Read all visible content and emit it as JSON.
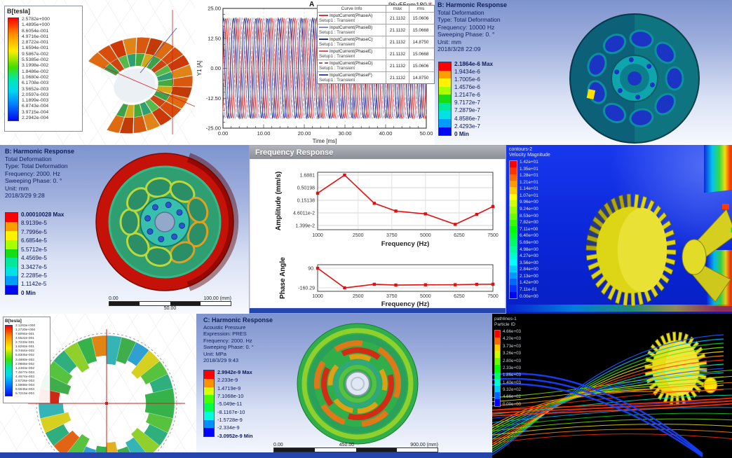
{
  "panels": {
    "maxwell_segment": {
      "legend_title": "B[tesla]",
      "legend_values": [
        "2.5782e+000",
        "1.4895e+000",
        "8.6054e-001",
        "4.9716e-001",
        "2.8722e-001",
        "1.6594e-001",
        "9.5867e-002",
        "5.5385e-002",
        "3.1998e-002",
        "1.8486e-002",
        "1.0680e-002",
        "6.1708e-003",
        "3.5652e-003",
        "2.0597e-003",
        "1.1899e-003",
        "6.8743e-004",
        "3.9715e-004",
        "2.2942e-004"
      ]
    },
    "current_plot": {
      "corner_label": "A",
      "title": "96v55nm180",
      "ylabel": "Y1 [A]",
      "xlabel": "Time [ms]",
      "y_ticks": [
        "25.00",
        "12.50",
        "0.00",
        "-12.50",
        "-25.00"
      ],
      "x_ticks": [
        "0.00",
        "10.00",
        "20.00",
        "30.00",
        "40.00",
        "50.00"
      ],
      "table_headers": [
        "Curve Info",
        "max",
        "rms"
      ],
      "series": [
        {
          "label": "InputCurrent(PhaseA)",
          "sub": "Setup1 : Transient",
          "max": "21.1132",
          "rms": "15.0606",
          "color": "#cf3a3a",
          "dash": "",
          "phase_deg": 0
        },
        {
          "label": "InputCurrent(PhaseB)",
          "sub": "Setup1 : Transient",
          "max": "21.1132",
          "rms": "15.0668",
          "color": "#8089cb",
          "dash": "",
          "phase_deg": -120
        },
        {
          "label": "InputCurrent(PhaseC)",
          "sub": "Setup1 : Transient",
          "max": "21.1132",
          "rms": "14.8750",
          "color": "#27338f",
          "dash": "",
          "phase_deg": -240
        },
        {
          "label": "InputCurrent(PhaseE)",
          "sub": "Setup1 : Transient",
          "max": "21.1132",
          "rms": "15.0668",
          "color": "#e05555",
          "dash": "",
          "phase_deg": -60
        },
        {
          "label": "InputCurrent(PhaseD)",
          "sub": "Setup1 : Transient",
          "max": "21.1132",
          "rms": "15.0606",
          "color": "#9a5a70",
          "dash": "4 3",
          "phase_deg": -180
        },
        {
          "label": "InputCurrent(PhaseF)",
          "sub": "Setup1 : Transient",
          "max": "21.1132",
          "rms": "14.8750",
          "color": "#3a49b0",
          "dash": "",
          "phase_deg": -300
        }
      ],
      "amplitude": 21.1132,
      "period_ms": 2.78
    },
    "harm10000": {
      "header_lines": [
        "B: Harmonic Response",
        "Total Deformation",
        "Type: Total Deformation",
        "Frequency: 10000 Hz",
        "Sweeping Phase: 0. °",
        "Unit: mm",
        "2018/3/28 22:09"
      ],
      "legend_values": [
        "2.1864e-6 Max",
        "1.9434e-6",
        "1.7005e-6",
        "1.4576e-6",
        "1.2147e-6",
        "9.7172e-7",
        "7.2879e-7",
        "4.8586e-7",
        "2.4293e-7",
        "0 Min"
      ]
    },
    "harm2000": {
      "header_lines": [
        "B: Harmonic Response",
        "Total Deformation",
        "Type: Total Deformation",
        "Frequency: 2000. Hz",
        "Sweeping Phase: 0. °",
        "Unit: mm",
        "2018/3/29 9:28"
      ],
      "legend_values": [
        "0.00010028 Max",
        "8.9139e-5",
        "7.7996e-5",
        "6.6854e-5",
        "5.5712e-5",
        "4.4569e-5",
        "3.3427e-5",
        "2.2285e-5",
        "1.1142e-5",
        "0 Min"
      ],
      "ruler_top": [
        "0.00",
        "100.00 (mm)"
      ],
      "ruler_bottom": [
        "50.00"
      ]
    },
    "freq_response": {
      "window_title": "Frequency Response",
      "amp_ylabel": "Amplitude (mm/s)",
      "phase_ylabel": "Phase Angle",
      "xlabel": "Frequency (Hz)",
      "amp_y_ticks": [
        "1.6881",
        "0.50198",
        "0.15138",
        "4.6011e-2",
        "1.399e-2"
      ],
      "x_ticks": [
        "1000",
        "2500",
        "3750",
        "5000",
        "6250",
        "7500"
      ],
      "phase_y_ticks": [
        "90.",
        "-160.29"
      ]
    },
    "cfd_velocity": {
      "legend_title_lines": [
        "contours-2",
        "Velocity Magnitude"
      ],
      "legend_values": [
        "1.42e+01",
        "1.35e+01",
        "1.28e+01",
        "1.21e+01",
        "1.14e+01",
        "1.07e+01",
        "9.96e+00",
        "9.24e+00",
        "8.53e+00",
        "7.82e+00",
        "7.11e+00",
        "6.40e+00",
        "5.69e+00",
        "4.98e+00",
        "4.27e+00",
        "3.56e+00",
        "2.84e+00",
        "2.13e+00",
        "1.42e+00",
        "7.11e-01",
        "0.00e+00"
      ]
    },
    "maxwell_ring": {
      "legend_title": "B[tesla]",
      "legend_values": [
        "2.1263e+000",
        "1.2720e+000",
        "7.6094e-001",
        "4.5522e-001",
        "2.7233e-001",
        "1.6292e-001",
        "9.7464e-002",
        "5.8305e-002",
        "3.4880e-002",
        "2.0866e-002",
        "1.2483e-002",
        "7.4677e-003",
        "4.4674e-003",
        "2.6726e-003",
        "1.5988e-003",
        "9.5645e-004",
        "5.7215e-004"
      ]
    },
    "acoustic": {
      "header_lines": [
        "C: Harmonic Response",
        "Acoustic Pressure",
        "Expression: PRES",
        "Frequency: 2000. Hz",
        "Sweeping Phase: 0. °",
        "Unit: MPa",
        "2018/3/29 9:43"
      ],
      "legend_values": [
        "2.9942e-9 Max",
        "2.233e-9",
        "1.4719e-9",
        "7.1068e-10",
        "-5.049e-11",
        "-8.1167e-10",
        "-1.5728e-9",
        "-2.334e-9",
        "-3.0952e-9 Min"
      ],
      "ruler_top": [
        "0.00",
        "450.00",
        "900.00 (mm)"
      ],
      "ruler_bottom": [
        "225.00",
        "675.00"
      ]
    },
    "streamlines": {
      "legend_title_lines": [
        "pathlines-1",
        "Particle ID"
      ],
      "legend_values": [
        "4.66e+03",
        "4.20e+03",
        "3.73e+03",
        "3.26e+03",
        "2.80e+03",
        "2.33e+03",
        "1.86e+03",
        "1.40e+03",
        "9.32e+02",
        "4.66e+02",
        "0.00e+00"
      ]
    }
  },
  "chart_data": [
    {
      "type": "line",
      "title": "96v55nm180",
      "xlabel": "Time [ms]",
      "ylabel": "Y1 [A]",
      "xlim": [
        0,
        50
      ],
      "ylim": [
        -25,
        25
      ],
      "x_ticks": [
        0,
        10,
        20,
        30,
        40,
        50
      ],
      "y_ticks": [
        25,
        12.5,
        0,
        -12.5,
        -25
      ],
      "description": "Six three-phase input-current sinusoids, amplitude 21.1132 A, period about 2.78 ms",
      "series": [
        {
          "name": "InputCurrent(PhaseA)",
          "max": 21.1132,
          "rms": 15.0606
        },
        {
          "name": "InputCurrent(PhaseB)",
          "max": 21.1132,
          "rms": 15.0668
        },
        {
          "name": "InputCurrent(PhaseC)",
          "max": 21.1132,
          "rms": 14.875
        },
        {
          "name": "InputCurrent(PhaseE)",
          "max": 21.1132,
          "rms": 15.0668
        },
        {
          "name": "InputCurrent(PhaseD)",
          "max": 21.1132,
          "rms": 15.0606
        },
        {
          "name": "InputCurrent(PhaseF)",
          "max": 21.1132,
          "rms": 14.875
        }
      ],
      "legend_position": "top-right table"
    },
    {
      "type": "line",
      "title": "Frequency Response - Amplitude",
      "xlabel": "Frequency (Hz)",
      "ylabel": "Amplitude (mm/s)",
      "yscale": "log",
      "xlim": [
        1000,
        7500
      ],
      "x_ticks": [
        1000,
        2500,
        3750,
        5000,
        6250,
        7500
      ],
      "y_tick_labels": [
        1.6881,
        0.50198,
        0.15138,
        0.046011,
        0.01399
      ],
      "x": [
        1000,
        2000,
        3100,
        3900,
        5000,
        6100,
        6900,
        7500
      ],
      "y": [
        0.3,
        1.6881,
        0.115,
        0.055,
        0.042,
        0.0155,
        0.04,
        0.085
      ],
      "grid": true,
      "marker": "square",
      "line_color": "#e01010"
    },
    {
      "type": "line",
      "title": "Frequency Response - Phase",
      "xlabel": "Frequency (Hz)",
      "ylabel": "Phase Angle",
      "xlim": [
        1000,
        7500
      ],
      "x_ticks": [
        1000,
        2500,
        3750,
        5000,
        6250,
        7500
      ],
      "y_tick_labels": [
        90,
        -160.29
      ],
      "x": [
        1000,
        2000,
        3100,
        3900,
        5000,
        6100,
        6900,
        7500
      ],
      "y": [
        90,
        -160,
        -115,
        -125,
        -122,
        -121,
        -116,
        -114
      ],
      "marker": "square",
      "line_color": "#e01010"
    }
  ],
  "colors": {
    "ansys_band_colors": [
      "#ff0000",
      "#ff9d00",
      "#fff200",
      "#a8ff00",
      "#16dd16",
      "#00e89c",
      "#00e2e2",
      "#009dff",
      "#0008f0"
    ],
    "fluent_bg": "#0a26d8",
    "navy_text": "#10205e",
    "line_red": "#cf3a3a",
    "line_navy": "#27338f",
    "title_bar_grey": "#9a9ca6",
    "bottom_strip_blue": "#2446ac"
  }
}
